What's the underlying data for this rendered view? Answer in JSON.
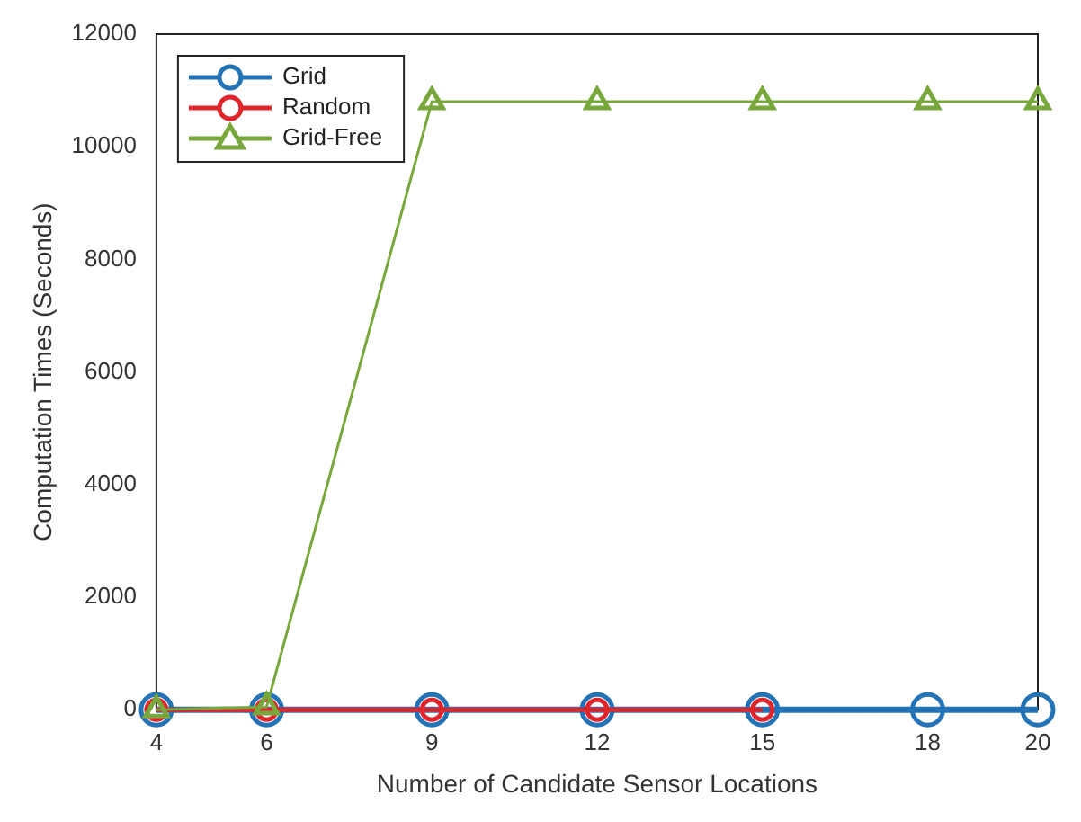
{
  "chart_data": {
    "type": "line",
    "xlabel": "Number of Candidate Sensor Locations",
    "ylabel": "Computation Times (Seconds)",
    "xlim": [
      4,
      20
    ],
    "xticks": [
      4,
      6,
      9,
      12,
      15,
      18,
      20
    ],
    "ylim": [
      0,
      12000
    ],
    "yticks": [
      0,
      2000,
      4000,
      6000,
      8000,
      10000,
      12000
    ],
    "grid": false,
    "legend": "top left",
    "line_style": "solid",
    "series": [
      {
        "name": "Grid",
        "color": "#2373b6",
        "marker": "circle",
        "x": [
          4,
          6,
          9,
          12,
          15,
          18,
          20
        ],
        "values": [
          0,
          0,
          0,
          0,
          0,
          0,
          0
        ]
      },
      {
        "name": "Random",
        "color": "#e0262a",
        "marker": "circle",
        "x": [
          4,
          6,
          9,
          12,
          15
        ],
        "values": [
          0,
          0,
          0,
          0,
          0
        ]
      },
      {
        "name": "Grid-Free",
        "color": "#78a83c",
        "marker": "triangle",
        "x": [
          4,
          6,
          9,
          12,
          15,
          18,
          20
        ],
        "values": [
          0,
          50,
          10800,
          10800,
          10800,
          10800,
          10800
        ]
      }
    ]
  }
}
